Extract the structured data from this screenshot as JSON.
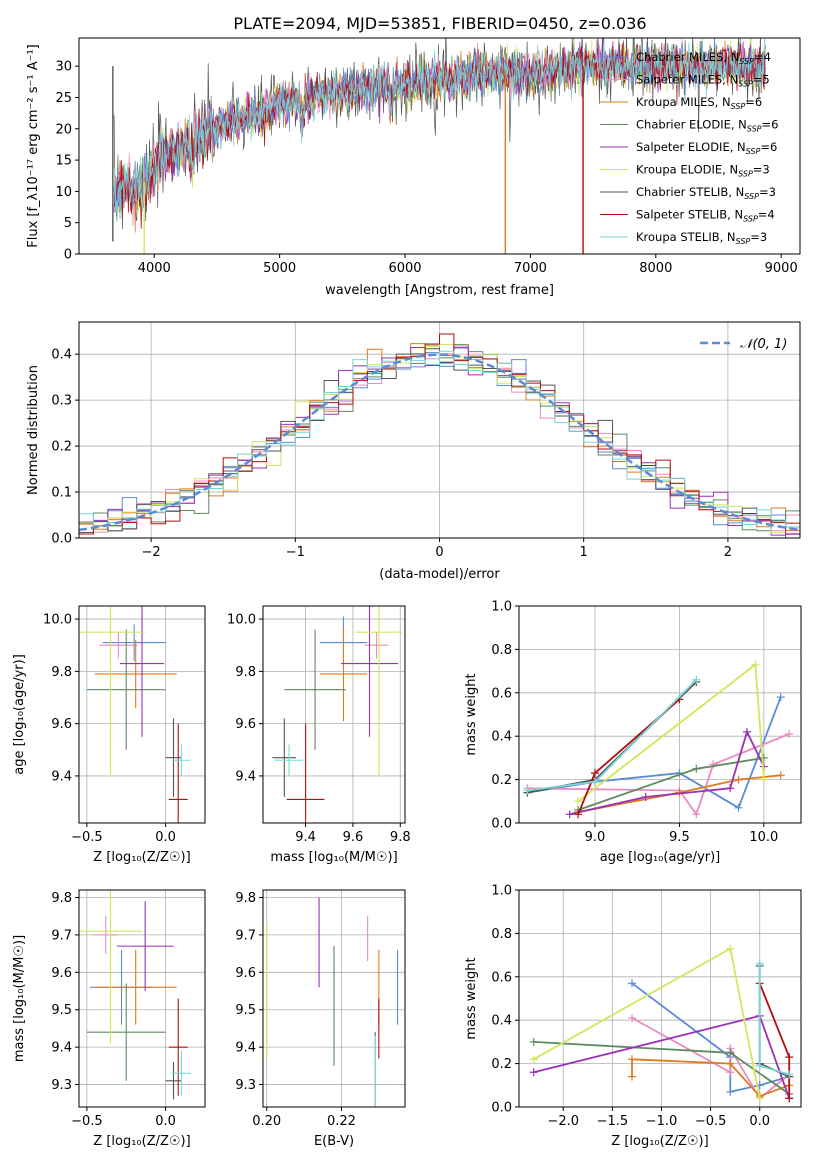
{
  "figure_title": "PLATE=2094, MJD=53851, FIBERID=0450, z=0.036",
  "models": [
    {
      "id": "chab_miles",
      "name": "Chabrier MILES, N",
      "n": "=4",
      "color": "#5b8bd6"
    },
    {
      "id": "salp_miles",
      "name": "Salpeter MILES, N",
      "n": "=5",
      "color": "#e98cc0"
    },
    {
      "id": "krou_miles",
      "name": "Kroupa MILES, N",
      "n": "=6",
      "color": "#e07a1f"
    },
    {
      "id": "chab_elodie",
      "name": "Chabrier ELODIE, N",
      "n": "=6",
      "color": "#5f8a5f"
    },
    {
      "id": "salp_elodie",
      "name": "Salpeter ELODIE, N",
      "n": "=6",
      "color": "#9a32b3"
    },
    {
      "id": "krou_elodie",
      "name": "Kroupa ELODIE, N",
      "n": "=3",
      "color": "#cde85a"
    },
    {
      "id": "chab_stelib",
      "name": "Chabrier STELIB, N",
      "n": "=3",
      "color": "#555555"
    },
    {
      "id": "salp_stelib",
      "name": "Salpeter STELIB, N",
      "n": "=4",
      "color": "#b01010"
    },
    {
      "id": "krou_stelib",
      "name": "Kroupa STELIB, N",
      "n": "=3",
      "color": "#79d6d6"
    }
  ],
  "legend_sub": "SSP",
  "chart_data": [
    {
      "type": "line",
      "id": "spectrum",
      "xlabel": "wavelength [Angstrom, rest frame]",
      "ylabel": "Flux [f_λ10⁻¹⁷ erg cm⁻² s⁻¹ A⁻¹]",
      "xlim": [
        3400,
        9150
      ],
      "ylim": [
        0,
        34.5
      ],
      "xticks": [
        4000,
        5000,
        6000,
        7000,
        8000,
        9000
      ],
      "yticks": [
        0,
        5,
        10,
        15,
        20,
        25,
        30
      ],
      "legend": "upper right",
      "continuum": [
        [
          3680,
          9
        ],
        [
          3750,
          11
        ],
        [
          3850,
          10
        ],
        [
          3950,
          12
        ],
        [
          4050,
          15
        ],
        [
          4200,
          17
        ],
        [
          4400,
          19
        ],
        [
          4600,
          21
        ],
        [
          4800,
          22
        ],
        [
          5000,
          24
        ],
        [
          5200,
          25
        ],
        [
          5400,
          26
        ],
        [
          5600,
          26
        ],
        [
          5800,
          27
        ],
        [
          6000,
          27
        ],
        [
          6200,
          28
        ],
        [
          6400,
          28
        ],
        [
          6600,
          29
        ],
        [
          6800,
          29
        ],
        [
          7000,
          29
        ],
        [
          7200,
          29
        ],
        [
          7400,
          30
        ],
        [
          7600,
          30
        ],
        [
          7800,
          30
        ],
        [
          8000,
          30
        ],
        [
          8200,
          30
        ],
        [
          8400,
          30
        ],
        [
          8600,
          30
        ],
        [
          8800,
          30
        ]
      ],
      "dropouts": [
        {
          "x": 3670,
          "y": 2,
          "model": "chab_stelib"
        },
        {
          "x": 3920,
          "y": 0,
          "model": "krou_elodie"
        },
        {
          "x": 6800,
          "y": 0,
          "model": "krou_miles"
        },
        {
          "x": 7420,
          "y": 0,
          "model": "salp_stelib"
        }
      ]
    },
    {
      "type": "histogram",
      "id": "residuals",
      "xlabel": "(data-model)/error",
      "ylabel": "Normed distribution",
      "xlim": [
        -2.5,
        2.5
      ],
      "ylim": [
        0,
        0.47
      ],
      "xticks": [
        -2,
        -1,
        0,
        1,
        2
      ],
      "yticks": [
        0.0,
        0.1,
        0.2,
        0.3,
        0.4
      ],
      "reference_label": "𝒩(0, 1)",
      "reference_mean": 0,
      "reference_sigma": 1,
      "grid": true,
      "legend": "upper right"
    },
    {
      "type": "errorbar",
      "id": "age_vs_Z",
      "xlabel": "Z [log₁₀(Z/Z☉)]",
      "ylabel": "age  [log₁₀(age/yr)]",
      "xlim": [
        -0.55,
        0.25
      ],
      "ylim": [
        9.22,
        10.05
      ],
      "xticks": [
        -0.5,
        0.0
      ],
      "yticks": [
        9.4,
        9.6,
        9.8,
        10.0
      ],
      "grid": true,
      "points": [
        {
          "model": "chab_miles",
          "x": -0.2,
          "xerr": 0.2,
          "y": 9.91,
          "yerr": 0.07
        },
        {
          "model": "salp_miles",
          "x": -0.3,
          "xerr": 0.12,
          "y": 9.9,
          "yerr": 0.05
        },
        {
          "model": "krou_miles",
          "x": -0.19,
          "xerr": 0.26,
          "y": 9.79,
          "yerr": 0.13
        },
        {
          "model": "chab_elodie",
          "x": -0.25,
          "xerr": 0.25,
          "y": 9.73,
          "yerr": 0.23
        },
        {
          "model": "salp_elodie",
          "x": -0.15,
          "xerr": 0.14,
          "y": 9.83,
          "yerr": 0.28
        },
        {
          "model": "krou_elodie",
          "x": -0.35,
          "xerr": 0.22,
          "y": 9.95,
          "yerr": 0.55
        },
        {
          "model": "chab_stelib",
          "x": 0.05,
          "xerr": 0.05,
          "y": 9.47,
          "yerr": 0.15
        },
        {
          "model": "salp_stelib",
          "x": 0.08,
          "xerr": 0.06,
          "y": 9.31,
          "yerr": 0.29
        },
        {
          "model": "krou_stelib",
          "x": 0.1,
          "xerr": 0.06,
          "y": 9.46,
          "yerr": 0.06
        }
      ]
    },
    {
      "type": "errorbar",
      "id": "age_vs_mass",
      "xlabel": "mass [log₁₀(M/M☉)]",
      "ylabel": "",
      "xlim": [
        9.22,
        9.82
      ],
      "ylim": [
        9.22,
        10.05
      ],
      "xticks": [
        9.4,
        9.6,
        9.8
      ],
      "yticks": [
        9.4,
        9.6,
        9.8,
        10.0
      ],
      "grid": true,
      "points": [
        {
          "model": "chab_miles",
          "x": 9.56,
          "xerr": 0.1,
          "y": 9.91,
          "yerr": 0.1
        },
        {
          "model": "salp_miles",
          "x": 9.7,
          "xerr": 0.05,
          "y": 9.9,
          "yerr": 0.05
        },
        {
          "model": "krou_miles",
          "x": 9.56,
          "xerr": 0.1,
          "y": 9.79,
          "yerr": 0.18
        },
        {
          "model": "chab_elodie",
          "x": 9.44,
          "xerr": 0.13,
          "y": 9.73,
          "yerr": 0.23
        },
        {
          "model": "salp_elodie",
          "x": 9.67,
          "xerr": 0.12,
          "y": 9.83,
          "yerr": 0.28
        },
        {
          "model": "krou_elodie",
          "x": 9.71,
          "xerr": 0.1,
          "y": 9.95,
          "yerr": 0.55
        },
        {
          "model": "chab_stelib",
          "x": 9.31,
          "xerr": 0.05,
          "y": 9.47,
          "yerr": 0.15
        },
        {
          "model": "salp_stelib",
          "x": 9.4,
          "xerr": 0.08,
          "y": 9.31,
          "yerr": 0.29
        },
        {
          "model": "krou_stelib",
          "x": 9.33,
          "xerr": 0.06,
          "y": 9.46,
          "yerr": 0.06
        }
      ]
    },
    {
      "type": "line",
      "id": "weight_vs_age",
      "xlabel": "age  [log₁₀(age/yr)]",
      "ylabel": "mass weight",
      "xlim": [
        8.55,
        10.22
      ],
      "ylim": [
        0,
        1.0
      ],
      "xticks": [
        9.0,
        9.5,
        10.0
      ],
      "yticks": [
        0.0,
        0.2,
        0.4,
        0.6,
        0.8,
        1.0
      ],
      "grid": true,
      "series": [
        {
          "model": "chab_miles",
          "x": [
            8.6,
            9.0,
            9.5,
            9.85,
            10.1
          ],
          "y": [
            0.14,
            0.19,
            0.23,
            0.07,
            0.58
          ]
        },
        {
          "model": "salp_miles",
          "x": [
            8.6,
            9.5,
            9.6,
            9.7,
            10.15
          ],
          "y": [
            0.16,
            0.15,
            0.04,
            0.27,
            0.41
          ]
        },
        {
          "model": "krou_miles",
          "x": [
            8.9,
            9.5,
            9.85,
            10.1
          ],
          "y": [
            0.05,
            0.14,
            0.2,
            0.22
          ]
        },
        {
          "model": "chab_elodie",
          "x": [
            8.9,
            9.6,
            10.0
          ],
          "y": [
            0.06,
            0.25,
            0.3
          ]
        },
        {
          "model": "salp_elodie",
          "x": [
            8.85,
            9.3,
            9.8,
            9.9,
            10.0
          ],
          "y": [
            0.04,
            0.12,
            0.16,
            0.42,
            0.26
          ]
        },
        {
          "model": "krou_elodie",
          "x": [
            8.9,
            9.95,
            10.0
          ],
          "y": [
            0.1,
            0.73,
            0.2
          ]
        },
        {
          "model": "chab_stelib",
          "x": [
            8.6,
            9.0,
            9.6
          ],
          "y": [
            0.14,
            0.2,
            0.65
          ]
        },
        {
          "model": "salp_stelib",
          "x": [
            8.9,
            9.0,
            9.5
          ],
          "y": [
            0.04,
            0.23,
            0.57
          ]
        },
        {
          "model": "krou_stelib",
          "x": [
            8.6,
            9.0,
            9.6
          ],
          "y": [
            0.15,
            0.19,
            0.66
          ]
        }
      ]
    },
    {
      "type": "errorbar",
      "id": "mass_vs_Z",
      "xlabel": "Z [log₁₀(Z/Z☉)]",
      "ylabel": "mass [log₁₀(M/M☉)]",
      "xlim": [
        -0.55,
        0.25
      ],
      "ylim": [
        9.24,
        9.82
      ],
      "xticks": [
        -0.5,
        0.0
      ],
      "yticks": [
        9.3,
        9.4,
        9.5,
        9.6,
        9.7,
        9.8
      ],
      "grid": true,
      "points": [
        {
          "model": "chab_miles",
          "x": -0.28,
          "xerr": 0.2,
          "y": 9.56,
          "yerr": 0.1
        },
        {
          "model": "salp_miles",
          "x": -0.38,
          "xerr": 0.08,
          "y": 9.7,
          "yerr": 0.05
        },
        {
          "model": "krou_miles",
          "x": -0.19,
          "xerr": 0.26,
          "y": 9.56,
          "yerr": 0.1
        },
        {
          "model": "chab_elodie",
          "x": -0.25,
          "xerr": 0.25,
          "y": 9.44,
          "yerr": 0.13
        },
        {
          "model": "salp_elodie",
          "x": -0.13,
          "xerr": 0.18,
          "y": 9.67,
          "yerr": 0.12
        },
        {
          "model": "krou_elodie",
          "x": -0.35,
          "xerr": 0.2,
          "y": 9.71,
          "yerr": 0.3
        },
        {
          "model": "chab_stelib",
          "x": 0.05,
          "xerr": 0.05,
          "y": 9.31,
          "yerr": 0.05
        },
        {
          "model": "salp_stelib",
          "x": 0.08,
          "xerr": 0.06,
          "y": 9.4,
          "yerr": 0.13
        },
        {
          "model": "krou_stelib",
          "x": 0.1,
          "xerr": 0.06,
          "y": 9.33,
          "yerr": 0.06
        }
      ]
    },
    {
      "type": "errorbar",
      "id": "mass_vs_ebv",
      "xlabel": "E(B-V)",
      "ylabel": "",
      "xlim": [
        0.199,
        0.237
      ],
      "ylim": [
        9.24,
        9.82
      ],
      "xticks": [
        0.2,
        0.22
      ],
      "yticks": [
        9.3,
        9.4,
        9.5,
        9.6,
        9.7,
        9.8
      ],
      "grid": true,
      "points": [
        {
          "model": "chab_miles",
          "x": 0.235,
          "xerr": 0,
          "y": 9.56,
          "yerr": 0.1
        },
        {
          "model": "salp_miles",
          "x": 0.227,
          "xerr": 0,
          "y": 9.69,
          "yerr": 0.06
        },
        {
          "model": "krou_miles",
          "x": 0.23,
          "xerr": 0,
          "y": 9.56,
          "yerr": 0.1
        },
        {
          "model": "chab_elodie",
          "x": 0.218,
          "xerr": 0,
          "y": 9.51,
          "yerr": 0.16
        },
        {
          "model": "salp_elodie",
          "x": 0.214,
          "xerr": 0,
          "y": 9.68,
          "yerr": 0.12
        },
        {
          "model": "krou_elodie",
          "x": 0.2,
          "xerr": 0,
          "y": 9.55,
          "yerr": 0.18
        },
        {
          "model": "chab_stelib",
          "x": 0.229,
          "xerr": 0,
          "y": 9.34,
          "yerr": 0.1
        },
        {
          "model": "salp_stelib",
          "x": 0.23,
          "xerr": 0,
          "y": 9.45,
          "yerr": 0.08
        },
        {
          "model": "krou_stelib",
          "x": 0.229,
          "xerr": 0,
          "y": 9.33,
          "yerr": 0.1
        }
      ]
    },
    {
      "type": "line",
      "id": "weight_vs_Z",
      "xlabel": "Z [log₁₀(Z/Z☉)]",
      "ylabel": "mass weight",
      "xlim": [
        -2.45,
        0.42
      ],
      "ylim": [
        0,
        1.0
      ],
      "xticks": [
        -2.0,
        -1.5,
        -1.0,
        -0.5,
        0.0
      ],
      "yticks": [
        0.0,
        0.2,
        0.4,
        0.6,
        0.8,
        1.0
      ],
      "grid": true,
      "series": [
        {
          "model": "chab_miles",
          "x": [
            -1.3,
            -0.3,
            -0.3,
            0.0,
            0.3
          ],
          "y": [
            0.57,
            0.23,
            0.07,
            0.1,
            0.14
          ]
        },
        {
          "model": "salp_miles",
          "x": [
            -1.3,
            -0.3,
            -0.3,
            0.0,
            0.3
          ],
          "y": [
            0.41,
            0.16,
            0.27,
            0.04,
            0.15
          ]
        },
        {
          "model": "krou_miles",
          "x": [
            -1.3,
            -1.3,
            -0.3,
            0.0,
            0.3
          ],
          "y": [
            0.14,
            0.22,
            0.2,
            0.05,
            0.1
          ]
        },
        {
          "model": "chab_elodie",
          "x": [
            -2.3,
            -0.3,
            0.3
          ],
          "y": [
            0.3,
            0.25,
            0.06
          ]
        },
        {
          "model": "salp_elodie",
          "x": [
            -2.3,
            0.0,
            0.3
          ],
          "y": [
            0.16,
            0.42,
            0.04
          ]
        },
        {
          "model": "krou_elodie",
          "x": [
            -2.3,
            -0.3,
            0.0
          ],
          "y": [
            0.22,
            0.73,
            0.04
          ]
        },
        {
          "model": "chab_stelib",
          "x": [
            0.0,
            0.0,
            0.3
          ],
          "y": [
            0.65,
            0.2,
            0.14
          ]
        },
        {
          "model": "salp_stelib",
          "x": [
            0.0,
            0.3,
            0.3
          ],
          "y": [
            0.57,
            0.23,
            0.04
          ]
        },
        {
          "model": "krou_stelib",
          "x": [
            0.0,
            0.0,
            0.3
          ],
          "y": [
            0.66,
            0.19,
            0.15
          ]
        }
      ]
    }
  ]
}
